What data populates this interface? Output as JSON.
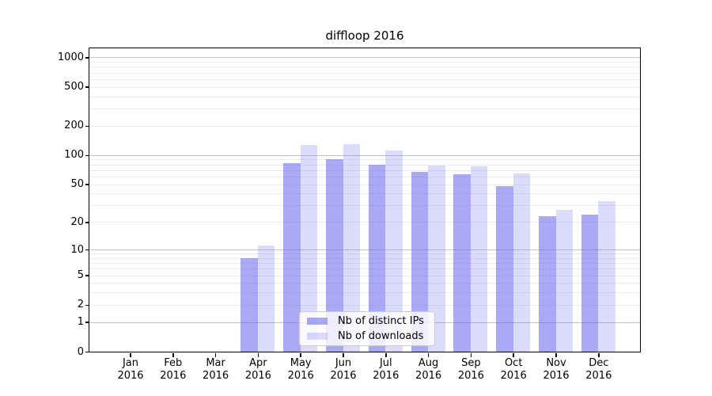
{
  "chart_data": {
    "type": "bar",
    "title": "diffloop 2016",
    "categories": [
      "Jan 2016",
      "Feb 2016",
      "Mar 2016",
      "Apr 2016",
      "May 2016",
      "Jun 2016",
      "Jul 2016",
      "Aug 2016",
      "Sep 2016",
      "Oct 2016",
      "Nov 2016",
      "Dec 2016"
    ],
    "series": [
      {
        "name": "Nb of distinct IPs",
        "values": [
          0,
          0,
          0,
          8,
          83,
          91,
          80,
          67,
          63,
          48,
          23,
          24
        ],
        "color": "rgba(90,90,238,0.52)"
      },
      {
        "name": "Nb of downloads",
        "values": [
          0,
          0,
          0,
          11,
          126,
          130,
          112,
          78,
          76,
          65,
          27,
          33
        ],
        "color": "rgba(90,90,238,0.22)"
      }
    ],
    "xlabel": "",
    "ylabel": "",
    "yscale": "log(1+y)",
    "ytick_values": [
      0,
      1,
      2,
      5,
      10,
      20,
      50,
      100,
      200,
      500,
      1000
    ],
    "ylim": [
      0,
      1300
    ],
    "grid": true,
    "legend_position": "lower center"
  },
  "style": {
    "major_grid_color": "#c3c3c3",
    "minor_grid_color": "#ebebeb",
    "spine_color": "#000000",
    "text_color": "#000000",
    "legend_border_color": "#cccccc"
  }
}
